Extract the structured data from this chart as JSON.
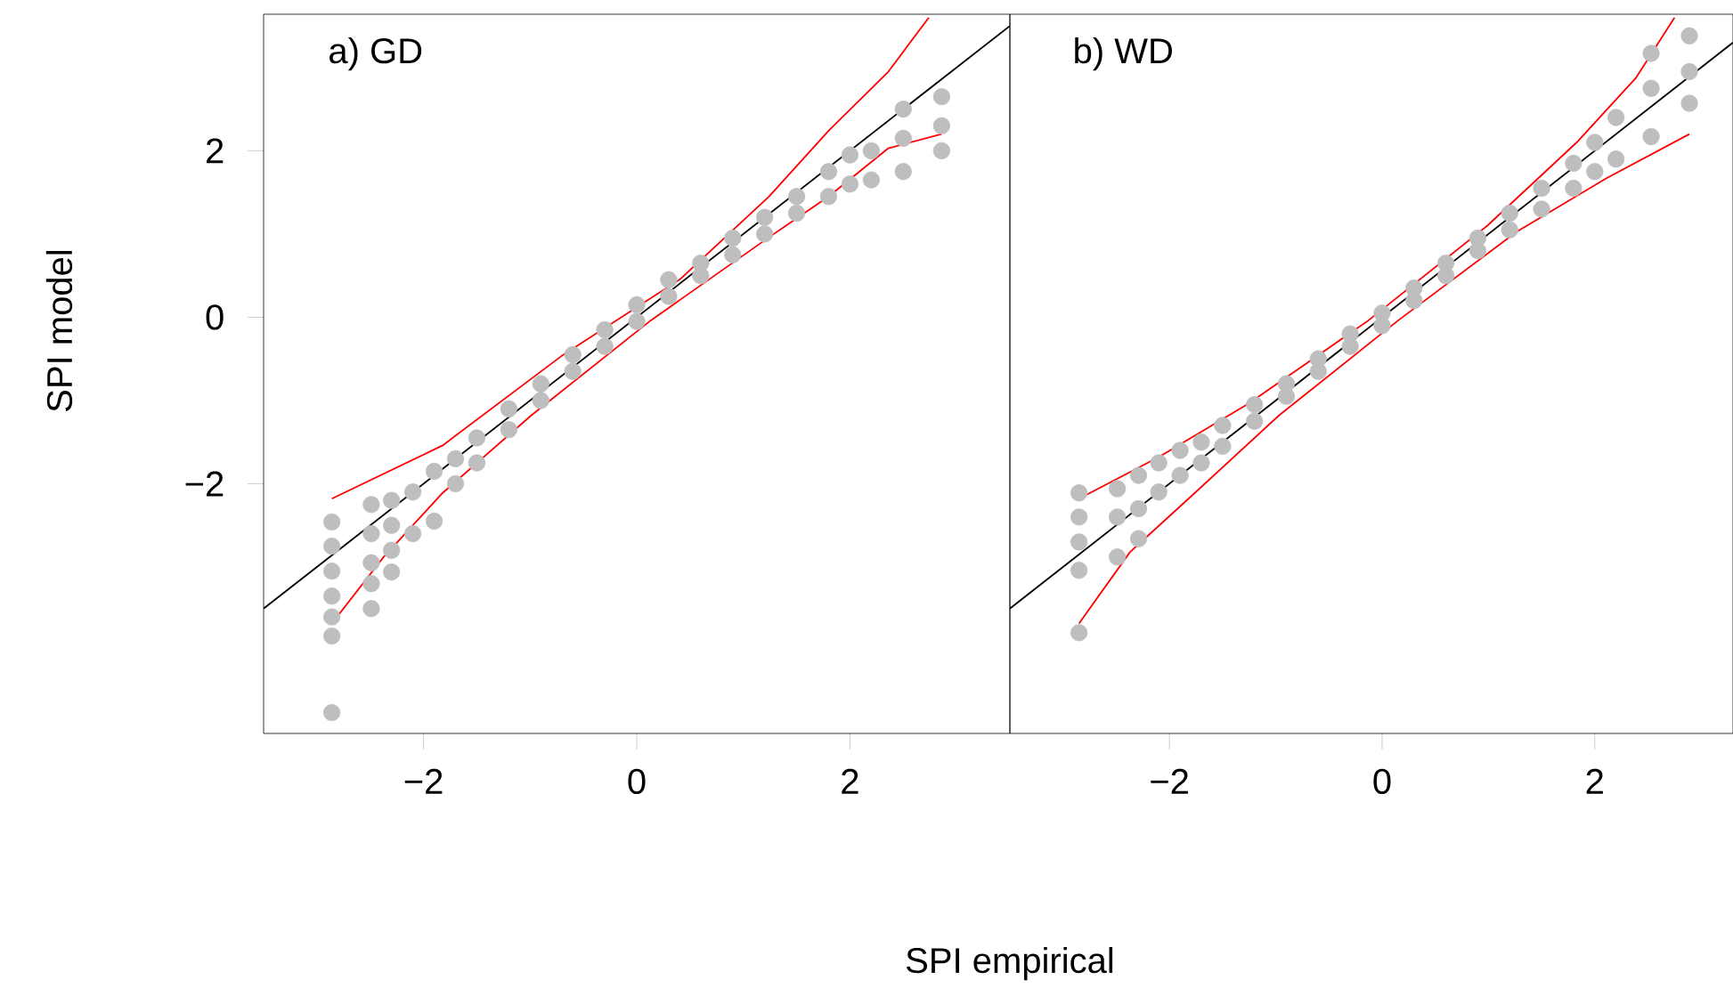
{
  "chart_data": [
    {
      "type": "scatter",
      "title": "a) GD",
      "xlabel": "SPI empirical",
      "ylabel": "SPI model",
      "marker": "circle",
      "xlim": [
        -3.5,
        3.5
      ],
      "ylim": [
        -5.0,
        3.64
      ],
      "xticks": [
        {
          "value": -2,
          "label": "−2"
        },
        0,
        2
      ],
      "yticks": [
        {
          "value": -2,
          "label": "−2"
        },
        0,
        2
      ],
      "series": [
        {
          "color": "#bebebe",
          "x": [
            -2.86,
            -2.86,
            -2.86,
            -2.86,
            -2.86,
            -2.86,
            -2.86,
            -2.49,
            -2.49,
            -2.49,
            -2.49,
            -2.49,
            -2.3,
            -2.3,
            -2.3,
            -2.3,
            -2.1,
            -2.1,
            -1.9,
            -1.9,
            -1.7,
            -1.7,
            -1.5,
            -1.5,
            -1.2,
            -1.2,
            -0.9,
            -0.9,
            -0.6,
            -0.6,
            -0.3,
            -0.3,
            0,
            0,
            0.3,
            0.3,
            0.6,
            0.6,
            0.9,
            0.9,
            1.2,
            1.2,
            1.5,
            1.5,
            1.8,
            1.8,
            2.0,
            2.0,
            2.2,
            2.2,
            2.5,
            2.5,
            2.5,
            2.86,
            2.86,
            2.86
          ],
          "values": [
            -2.46,
            -2.75,
            -3.05,
            -3.35,
            -3.6,
            -3.83,
            -4.75,
            -2.25,
            -2.6,
            -2.95,
            -3.2,
            -3.5,
            -2.2,
            -2.5,
            -2.8,
            -3.06,
            -2.1,
            -2.6,
            -1.85,
            -2.45,
            -1.7,
            -2.0,
            -1.45,
            -1.75,
            -1.1,
            -1.35,
            -0.8,
            -1.0,
            -0.45,
            -0.65,
            -0.15,
            -0.35,
            0.15,
            -0.05,
            0.45,
            0.25,
            0.65,
            0.5,
            0.95,
            0.75,
            1.2,
            1.0,
            1.45,
            1.25,
            1.75,
            1.45,
            1.95,
            1.6,
            2.0,
            1.65,
            2.5,
            2.15,
            1.75,
            2.65,
            2.3,
            2.0
          ]
        },
        {
          "type": "line",
          "marker": "none",
          "color": "#000000",
          "x": [
            -3.5,
            3.5
          ],
          "values": [
            -3.5,
            3.5
          ]
        },
        {
          "type": "line",
          "marker": "none",
          "color": "#ff0000",
          "x": [
            -2.86,
            -1.82,
            -0.71,
            0.41,
            1.24,
            1.8,
            2.36,
            2.74
          ],
          "values": [
            -2.18,
            -1.54,
            -0.47,
            0.46,
            1.45,
            2.24,
            2.95,
            3.6
          ]
        },
        {
          "type": "line",
          "marker": "none",
          "color": "#ff0000",
          "x": [
            -2.86,
            -2.38,
            -1.82,
            -0.99,
            0.13,
            1.24,
            1.8,
            2.36,
            2.86
          ],
          "values": [
            -3.68,
            -2.89,
            -2.11,
            -1.18,
            -0.04,
            0.96,
            1.45,
            2.03,
            2.2
          ]
        }
      ]
    },
    {
      "type": "scatter",
      "title": "b) WD",
      "tick_labels": "x",
      "marker": "circle",
      "xlim": [
        -3.5,
        3.3
      ],
      "ylim": [
        -5.0,
        3.64
      ],
      "xticks": [
        {
          "value": -2,
          "label": "−2"
        },
        0,
        2
      ],
      "series": [
        {
          "color": "#bebebe",
          "x": [
            -2.85,
            -2.85,
            -2.85,
            -2.85,
            -2.85,
            -2.49,
            -2.49,
            -2.49,
            -2.29,
            -2.29,
            -2.29,
            -2.1,
            -2.1,
            -1.9,
            -1.9,
            -1.7,
            -1.7,
            -1.5,
            -1.5,
            -1.2,
            -1.2,
            -0.9,
            -0.9,
            -0.6,
            -0.6,
            -0.3,
            -0.3,
            0,
            0,
            0.3,
            0.3,
            0.6,
            0.6,
            0.9,
            0.9,
            1.2,
            1.2,
            1.5,
            1.5,
            1.8,
            1.8,
            2.0,
            2.0,
            2.2,
            2.2,
            2.53,
            2.53,
            2.53,
            2.89,
            2.89,
            2.89
          ],
          "values": [
            -2.11,
            -2.4,
            -2.7,
            -3.04,
            -3.79,
            -2.06,
            -2.4,
            -2.88,
            -1.9,
            -2.3,
            -2.66,
            -1.75,
            -2.1,
            -1.6,
            -1.9,
            -1.5,
            -1.75,
            -1.3,
            -1.55,
            -1.05,
            -1.25,
            -0.8,
            -0.95,
            -0.5,
            -0.65,
            -0.2,
            -0.35,
            0.05,
            -0.1,
            0.35,
            0.2,
            0.65,
            0.5,
            0.95,
            0.8,
            1.25,
            1.05,
            1.55,
            1.3,
            1.85,
            1.55,
            2.1,
            1.75,
            2.4,
            1.9,
            3.17,
            2.75,
            2.17,
            3.38,
            2.95,
            2.57
          ]
        },
        {
          "type": "line",
          "marker": "none",
          "color": "#000000",
          "x": [
            -3.5,
            3.3
          ],
          "values": [
            -3.5,
            3.3
          ]
        },
        {
          "type": "line",
          "marker": "none",
          "color": "#ff0000",
          "x": [
            -2.85,
            -2.1,
            -1.26,
            -0.13,
            0.99,
            1.83,
            2.39,
            2.75
          ],
          "values": [
            -2.18,
            -1.68,
            -1.04,
            -0.04,
            1.1,
            2.1,
            2.88,
            3.6
          ]
        },
        {
          "type": "line",
          "marker": "none",
          "color": "#ff0000",
          "x": [
            -2.85,
            -2.37,
            -1.82,
            -0.97,
            0.15,
            1.27,
            2.11,
            2.89
          ],
          "values": [
            -3.68,
            -2.82,
            -2.18,
            -1.18,
            -0.04,
            1.03,
            1.67,
            2.2
          ]
        }
      ]
    }
  ]
}
